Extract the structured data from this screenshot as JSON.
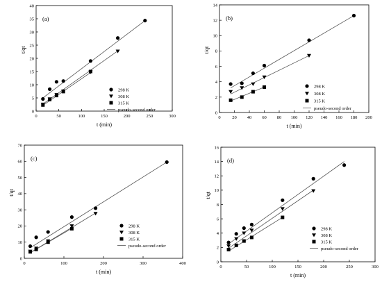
{
  "figure": {
    "legend_labels": {
      "s298": "298 K",
      "s308": "308 K",
      "s315": "315 K",
      "fit": "pseudo-second order"
    }
  },
  "chart_data": [
    {
      "panel": "(a)",
      "type": "scatter",
      "xlabel": "t (min)",
      "ylabel": "t/qt",
      "xlim": [
        0,
        300
      ],
      "ylim": [
        0,
        40
      ],
      "xticks": [
        0,
        50,
        100,
        150,
        200,
        250,
        300
      ],
      "yticks": [
        0,
        5,
        10,
        15,
        20,
        25,
        30,
        35,
        40
      ],
      "legend_position": "middle-right",
      "grid": false,
      "series": [
        {
          "name": "298 K",
          "marker": "circle",
          "x": [
            15,
            30,
            45,
            60,
            120,
            180,
            240
          ],
          "y": [
            4.6,
            8.3,
            11.1,
            11.4,
            19.0,
            27.7,
            34.3
          ]
        },
        {
          "name": "308 K",
          "marker": "triangle-down",
          "x": [
            15,
            30,
            45,
            60,
            120,
            180
          ],
          "y": [
            2.6,
            4.6,
            6.2,
            7.6,
            14.8,
            22.7
          ]
        },
        {
          "name": "315 K",
          "marker": "square",
          "x": [
            15,
            30,
            45,
            60,
            120
          ],
          "y": [
            2.3,
            4.4,
            5.9,
            7.4,
            15.0
          ]
        }
      ],
      "fit_lines": [
        {
          "series": "298 K",
          "x": [
            15,
            240
          ],
          "y": [
            5.0,
            34.3
          ]
        },
        {
          "series": "308 K",
          "x": [
            15,
            180
          ],
          "y": [
            2.7,
            22.8
          ]
        },
        {
          "series": "315 K",
          "x": [
            15,
            120
          ],
          "y": [
            2.2,
            14.6
          ]
        }
      ]
    },
    {
      "panel": "(b)",
      "type": "scatter",
      "xlabel": "t (min)",
      "ylabel": "t/qt",
      "xlim": [
        0,
        200
      ],
      "ylim": [
        0,
        14
      ],
      "xticks": [
        0,
        20,
        40,
        60,
        80,
        100,
        120,
        140,
        160,
        180,
        200
      ],
      "yticks": [
        0,
        2,
        4,
        6,
        8,
        10,
        12,
        14
      ],
      "legend_position": "lower-right",
      "grid": false,
      "series": [
        {
          "name": "298 K",
          "marker": "circle",
          "x": [
            15,
            30,
            45,
            60,
            120,
            180
          ],
          "y": [
            3.7,
            3.8,
            5.1,
            6.1,
            9.4,
            12.6
          ]
        },
        {
          "name": "308 K",
          "marker": "triangle-down",
          "x": [
            15,
            30,
            45,
            60,
            120
          ],
          "y": [
            2.7,
            3.2,
            3.7,
            4.6,
            7.4
          ]
        },
        {
          "name": "315 K",
          "marker": "square",
          "x": [
            15,
            30,
            45,
            60
          ],
          "y": [
            1.6,
            2.0,
            2.7,
            3.3
          ]
        }
      ],
      "fit_lines": [
        {
          "series": "298 K",
          "x": [
            15,
            180
          ],
          "y": [
            3.2,
            12.6
          ]
        },
        {
          "series": "308 K",
          "x": [
            15,
            120
          ],
          "y": [
            2.4,
            7.4
          ]
        },
        {
          "series": "315 K",
          "x": [
            15,
            60
          ],
          "y": [
            1.5,
            3.3
          ]
        }
      ]
    },
    {
      "panel": "(c)",
      "type": "scatter",
      "xlabel": "t (min)",
      "ylabel": "t/qt",
      "xlim": [
        0,
        400
      ],
      "ylim": [
        0,
        70
      ],
      "xticks": [
        0,
        100,
        200,
        300,
        400
      ],
      "yticks": [
        0,
        10,
        20,
        30,
        40,
        50,
        60,
        70
      ],
      "legend_position": "lower-right",
      "grid": false,
      "series": [
        {
          "name": "298 K",
          "marker": "circle",
          "x": [
            15,
            30,
            60,
            120,
            180,
            360
          ],
          "y": [
            7.5,
            13.0,
            16.3,
            25.5,
            31.0,
            59.5
          ]
        },
        {
          "name": "308 K",
          "marker": "triangle-down",
          "x": [
            15,
            30,
            60,
            120,
            180
          ],
          "y": [
            4.3,
            6.2,
            10.7,
            20.0,
            27.7
          ]
        },
        {
          "name": "315 K",
          "marker": "square",
          "x": [
            15,
            30,
            60,
            120
          ],
          "y": [
            4.0,
            5.5,
            10.0,
            18.3
          ]
        }
      ],
      "fit_lines": [
        {
          "series": "298 K",
          "x": [
            15,
            360
          ],
          "y": [
            6.5,
            59.5
          ]
        },
        {
          "series": "308 K",
          "x": [
            15,
            180
          ],
          "y": [
            3.5,
            28.0
          ]
        },
        {
          "series": "315 K",
          "x": [
            15,
            120
          ],
          "y": [
            3.5,
            18.5
          ]
        }
      ]
    },
    {
      "panel": "(d)",
      "type": "scatter",
      "xlabel": "t (min)",
      "ylabel": "t/qt",
      "xlim": [
        0,
        300
      ],
      "ylim": [
        0,
        16
      ],
      "xticks": [
        0,
        50,
        100,
        150,
        200,
        250,
        300
      ],
      "yticks": [
        0,
        2,
        4,
        6,
        8,
        10,
        12,
        14,
        16
      ],
      "legend_position": "lower-right",
      "grid": false,
      "series": [
        {
          "name": "298 K",
          "marker": "circle",
          "x": [
            15,
            30,
            45,
            60,
            120,
            180,
            240
          ],
          "y": [
            2.7,
            3.9,
            4.7,
            5.2,
            8.6,
            11.6,
            13.5
          ]
        },
        {
          "name": "308 K",
          "marker": "triangle-down",
          "x": [
            15,
            30,
            45,
            60,
            120,
            180
          ],
          "y": [
            2.2,
            3.2,
            4.0,
            4.4,
            7.4,
            9.9
          ]
        },
        {
          "name": "315 K",
          "marker": "square",
          "x": [
            15,
            30,
            45,
            60,
            120
          ],
          "y": [
            1.7,
            2.3,
            2.9,
            3.4,
            6.2
          ]
        }
      ],
      "fit_lines": [
        {
          "series": "298 K",
          "x": [
            15,
            240
          ],
          "y": [
            2.5,
            14.0
          ]
        },
        {
          "series": "308 K",
          "x": [
            15,
            180
          ],
          "y": [
            1.9,
            10.0
          ]
        },
        {
          "series": "315 K",
          "x": [
            15,
            120
          ],
          "y": [
            1.5,
            6.2
          ]
        }
      ]
    }
  ]
}
